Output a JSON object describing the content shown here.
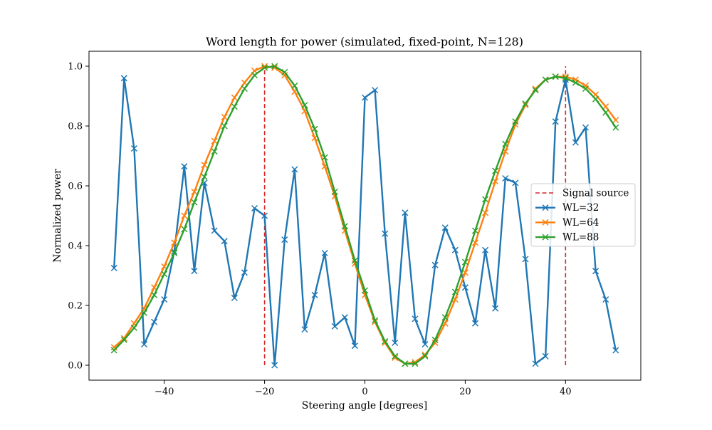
{
  "chart_data": {
    "type": "line",
    "title": "Word length for power (simulated, fixed-point, N=128)",
    "xlabel": "Steering angle [degrees]",
    "ylabel": "Normalized power",
    "xlim": [
      -55,
      55
    ],
    "ylim": [
      -0.05,
      1.05
    ],
    "x_ticks": [
      -40,
      -20,
      0,
      20,
      40
    ],
    "x_tick_labels": [
      "−40",
      "−20",
      "0",
      "20",
      "40"
    ],
    "y_ticks": [
      0.0,
      0.2,
      0.4,
      0.6,
      0.8,
      1.0
    ],
    "y_tick_labels": [
      "0.0",
      "0.2",
      "0.4",
      "0.6",
      "0.8",
      "1.0"
    ],
    "grid": false,
    "legend_placement": "center-right",
    "signal_sources": {
      "name": "Signal source",
      "color": "#d62728",
      "style": "dashed",
      "x": [
        -20,
        40
      ],
      "y_range": [
        0,
        1
      ]
    },
    "x": [
      -50,
      -48,
      -46,
      -44,
      -42,
      -40,
      -38,
      -36,
      -34,
      -32,
      -30,
      -28,
      -26,
      -24,
      -22,
      -20,
      -18,
      -16,
      -14,
      -12,
      -10,
      -8,
      -6,
      -4,
      -2,
      0,
      2,
      4,
      6,
      8,
      10,
      12,
      14,
      16,
      18,
      20,
      22,
      24,
      26,
      28,
      30,
      32,
      34,
      36,
      38,
      40,
      42,
      44,
      46,
      48,
      50
    ],
    "series": [
      {
        "name": "WL=32",
        "color": "#1f77b4",
        "marker": "x",
        "values": [
          0.325,
          0.96,
          0.725,
          0.07,
          0.145,
          0.22,
          0.38,
          0.665,
          0.315,
          0.61,
          0.45,
          0.415,
          0.225,
          0.31,
          0.525,
          0.5,
          0.0,
          0.42,
          0.655,
          0.12,
          0.235,
          0.375,
          0.13,
          0.16,
          0.065,
          0.895,
          0.92,
          0.44,
          0.075,
          0.51,
          0.155,
          0.07,
          0.335,
          0.46,
          0.385,
          0.26,
          0.14,
          0.385,
          0.19,
          0.625,
          0.61,
          0.355,
          0.005,
          0.03,
          0.815,
          0.955,
          0.745,
          0.795,
          0.315,
          0.22,
          0.05
        ]
      },
      {
        "name": "WL=64",
        "color": "#ff7f0e",
        "marker": "x",
        "values": [
          0.06,
          0.09,
          0.14,
          0.19,
          0.26,
          0.33,
          0.41,
          0.5,
          0.58,
          0.67,
          0.75,
          0.83,
          0.895,
          0.945,
          0.985,
          1.0,
          0.995,
          0.97,
          0.915,
          0.85,
          0.76,
          0.665,
          0.565,
          0.45,
          0.34,
          0.235,
          0.145,
          0.075,
          0.025,
          0.005,
          0.01,
          0.035,
          0.075,
          0.14,
          0.22,
          0.31,
          0.41,
          0.51,
          0.615,
          0.715,
          0.805,
          0.87,
          0.925,
          0.955,
          0.965,
          0.965,
          0.955,
          0.935,
          0.905,
          0.865,
          0.82
        ]
      },
      {
        "name": "WL=88",
        "color": "#2ca02c",
        "marker": "x",
        "values": [
          0.05,
          0.085,
          0.125,
          0.175,
          0.235,
          0.305,
          0.375,
          0.455,
          0.545,
          0.63,
          0.715,
          0.8,
          0.865,
          0.925,
          0.97,
          0.995,
          1.0,
          0.98,
          0.935,
          0.87,
          0.79,
          0.695,
          0.58,
          0.465,
          0.35,
          0.25,
          0.15,
          0.08,
          0.03,
          0.005,
          0.005,
          0.03,
          0.085,
          0.16,
          0.245,
          0.345,
          0.45,
          0.555,
          0.65,
          0.74,
          0.815,
          0.875,
          0.92,
          0.955,
          0.965,
          0.96,
          0.945,
          0.925,
          0.89,
          0.845,
          0.795
        ]
      }
    ]
  }
}
